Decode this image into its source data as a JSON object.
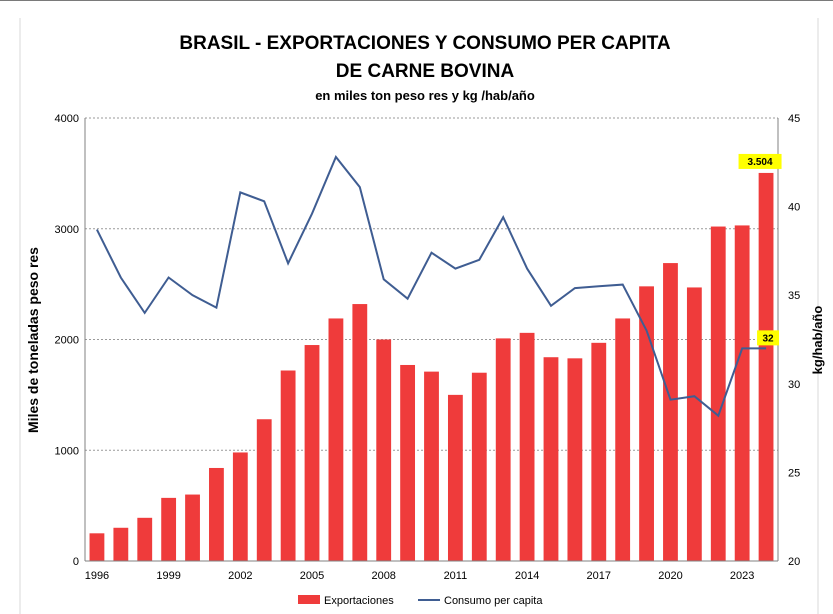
{
  "chart_data": {
    "type": "bar+line",
    "title_line1": "BRASIL - EXPORTACIONES Y CONSUMO PER CAPITA",
    "title_line2": "DE CARNE BOVINA",
    "subtitle": "en miles ton peso res y kg /hab/año",
    "ylabel_left": "Miles de toneladas peso res",
    "ylabel_right": "kg/hab/año",
    "ylim_left": [
      0,
      4000
    ],
    "yticks_left": [
      "0",
      "1000",
      "2000",
      "3000",
      "4000"
    ],
    "ylim_right": [
      20,
      45
    ],
    "yticks_right": [
      "20",
      "25",
      "30",
      "35",
      "40",
      "45"
    ],
    "x": [
      "1996",
      "1997",
      "1998",
      "1999",
      "2000",
      "2001",
      "2002",
      "2003",
      "2004",
      "2005",
      "2006",
      "2007",
      "2008",
      "2009",
      "2010",
      "2011",
      "2012",
      "2013",
      "2014",
      "2015",
      "2016",
      "2017",
      "2018",
      "2019",
      "2020",
      "2021",
      "2022",
      "2023",
      "2024"
    ],
    "xtick_labels": [
      "1996",
      "1999",
      "2002",
      "2005",
      "2008",
      "2011",
      "2014",
      "2017",
      "2020",
      "2023"
    ],
    "grid": true,
    "legend_position": "bottom",
    "series": [
      {
        "name": "Exportaciones",
        "type": "bar",
        "axis": "left",
        "color": "#ef3b3b",
        "values": [
          250,
          300,
          390,
          570,
          600,
          840,
          980,
          1280,
          1720,
          1950,
          2190,
          2320,
          2000,
          1770,
          1710,
          1500,
          1700,
          2010,
          2060,
          1840,
          1830,
          1970,
          2190,
          2480,
          2690,
          2470,
          3020,
          3030,
          3504
        ]
      },
      {
        "name": "Consumo per capita",
        "type": "line",
        "axis": "right",
        "color": "#3f5d92",
        "values": [
          38.7,
          36.0,
          34.0,
          36.0,
          35.0,
          34.3,
          40.8,
          40.3,
          36.8,
          39.6,
          42.8,
          41.1,
          35.9,
          34.8,
          37.4,
          36.5,
          37.0,
          39.4,
          36.5,
          34.4,
          35.4,
          35.5,
          35.6,
          33.0,
          29.1,
          29.3,
          28.2,
          32.0,
          32.0
        ]
      }
    ],
    "annotations": [
      {
        "label": "3.504",
        "series": "Exportaciones",
        "index": 28,
        "color": "#ffff00"
      },
      {
        "label": "32",
        "series": "Consumo per capita",
        "index": 28,
        "color": "#ffff00"
      }
    ]
  }
}
